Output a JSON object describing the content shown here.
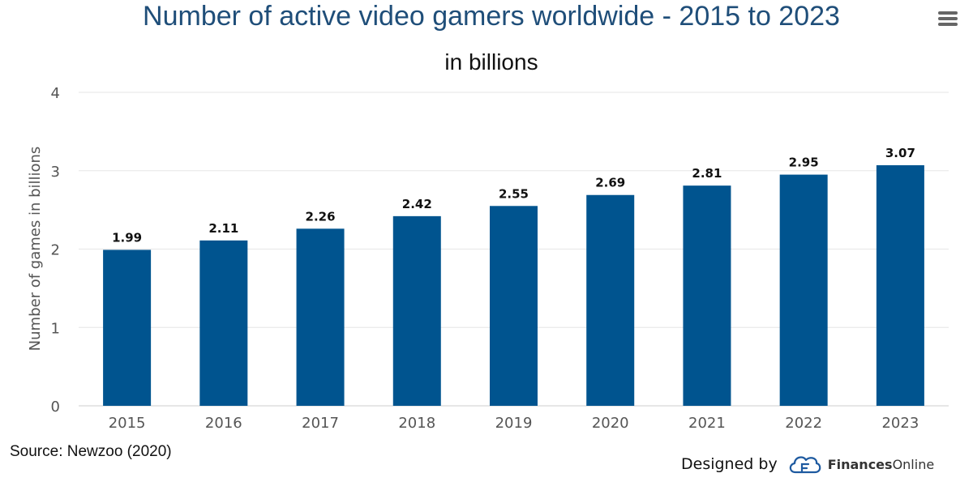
{
  "header": {
    "title": "Number of active video gamers worldwide - 2015 to 2023",
    "subtitle": "in billions"
  },
  "chart_data": {
    "type": "bar",
    "title": "Number of active video gamers worldwide - 2015 to 2023",
    "subtitle": "in billions",
    "xlabel": "",
    "ylabel": "Number of games in billions",
    "categories": [
      "2015",
      "2016",
      "2017",
      "2018",
      "2019",
      "2020",
      "2021",
      "2022",
      "2023"
    ],
    "values": [
      1.99,
      2.11,
      2.26,
      2.42,
      2.55,
      2.69,
      2.81,
      2.95,
      3.07
    ],
    "value_labels": [
      "1.99",
      "2.11",
      "2.26",
      "2.42",
      "2.55",
      "2.69",
      "2.81",
      "2.95",
      "3.07"
    ],
    "yticks": [
      0,
      1,
      2,
      3,
      4
    ],
    "ylim": [
      0,
      4
    ],
    "grid": true,
    "legend": "none",
    "bar_color": "#00548f"
  },
  "footer": {
    "source": "Source: Newzoo (2020)",
    "credit_prefix": "Designed by",
    "brand_bold": "Finances",
    "brand_regular": "Online"
  },
  "icons": {
    "menu": "hamburger-menu-icon",
    "logo": "financesonline-logo-icon"
  },
  "colors": {
    "title": "#1f4e79",
    "bar": "#00548f",
    "grid": "#e6e6e6",
    "logo": "#1e5aa0"
  }
}
